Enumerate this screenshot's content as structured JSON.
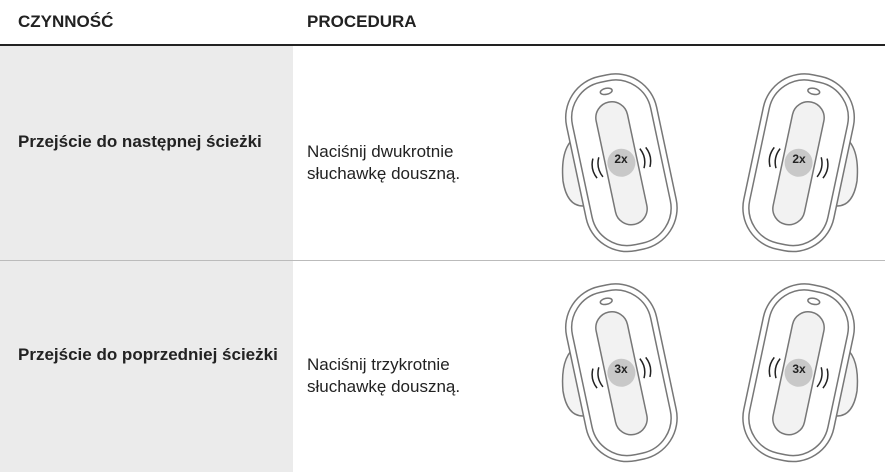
{
  "table": {
    "headers": [
      "CZYNNOŚĆ",
      "PROCEDURA"
    ],
    "rows": [
      {
        "action": "Przejście do następnej ścieżki",
        "procedure": "Naciśnij dwukrotnie słuchawkę douszną.",
        "badge": "2x"
      },
      {
        "action": "Przejście do poprzedniej ścieżki",
        "procedure": "Naciśnij trzykrotnie słuchawkę douszną.",
        "badge": "3x"
      }
    ]
  }
}
